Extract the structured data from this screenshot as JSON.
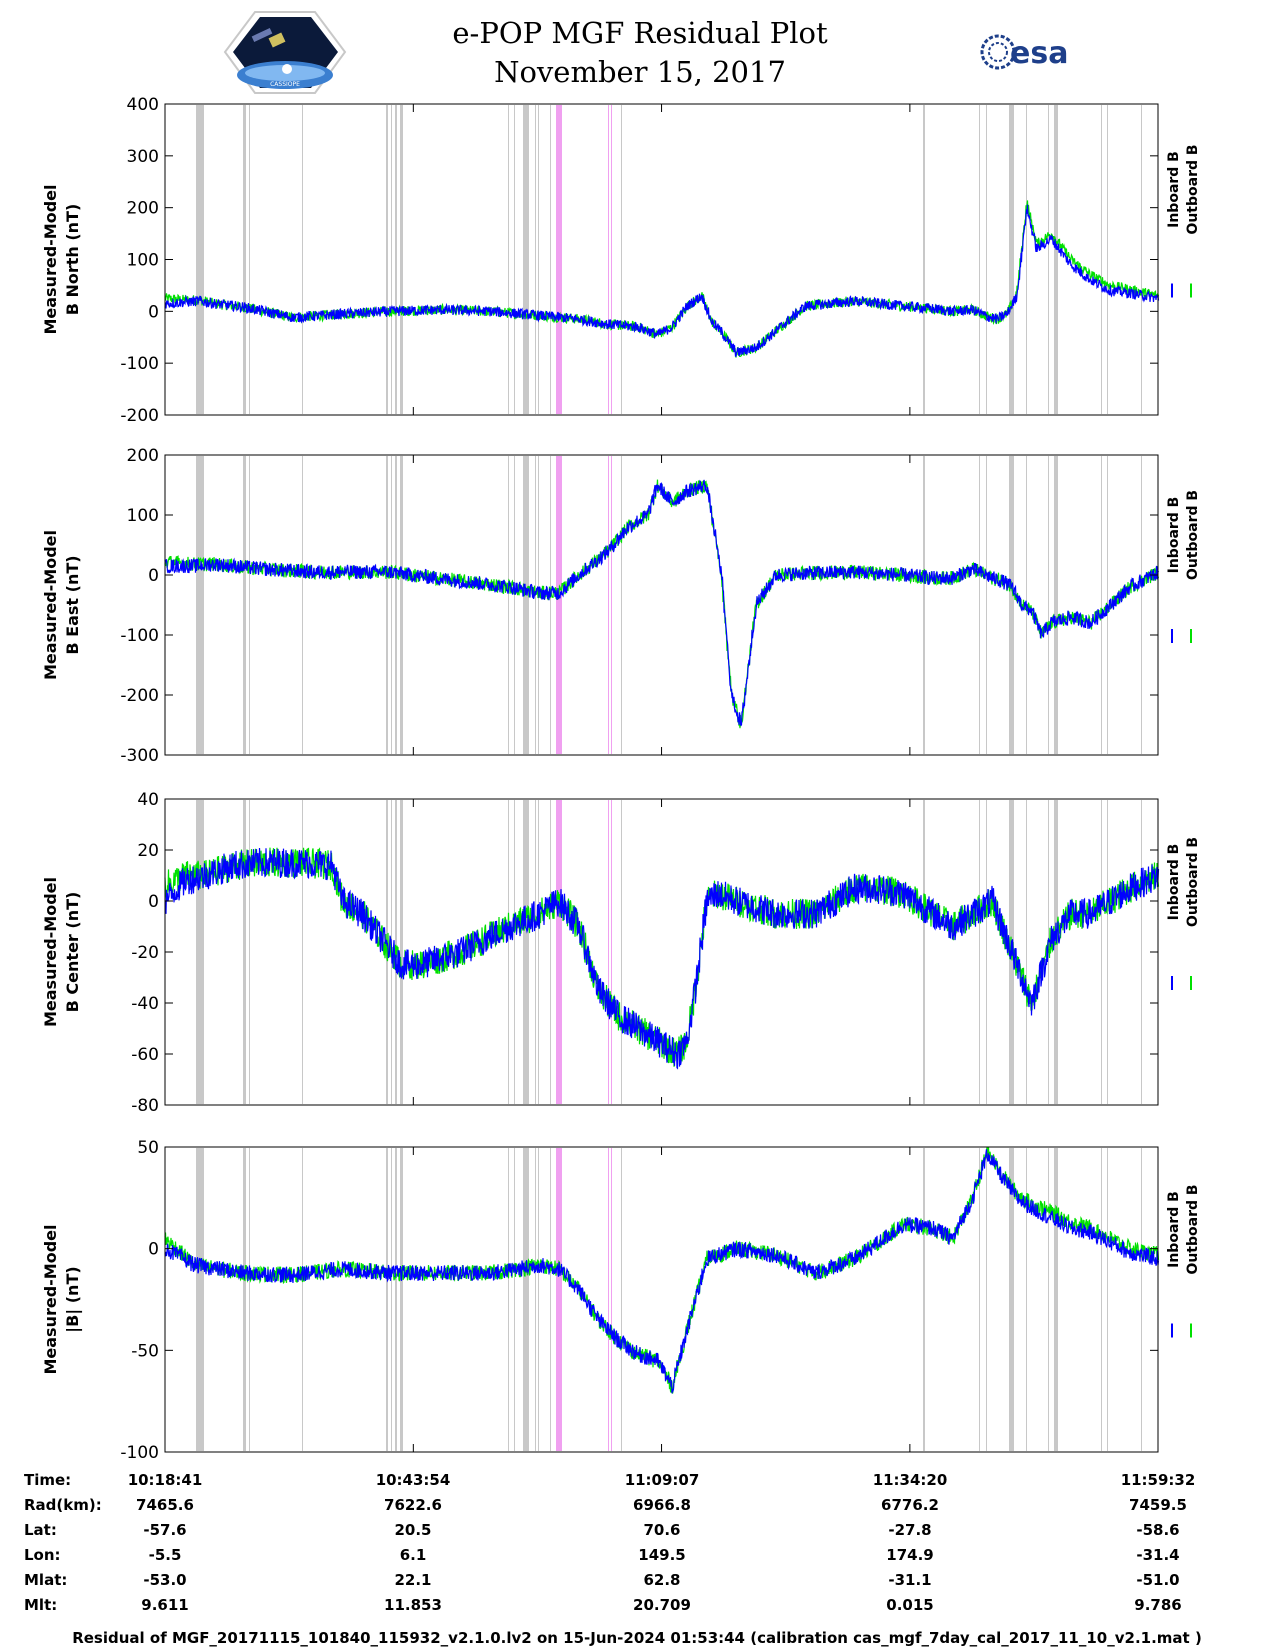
{
  "header": {
    "title_line1": "e-POP MGF Residual Plot",
    "title_line2": "November 15, 2017",
    "left_logo_text": "CASSIOPE",
    "right_logo_text": "esa"
  },
  "colors": {
    "inboard": "#0000ff",
    "outboard": "#00e000",
    "gap_gray": "#c8c8c8",
    "gap_pink": "#f0a0f0"
  },
  "time_table": {
    "row_labels": [
      "Time:",
      "Rad(km):",
      "Lat:",
      "Lon:",
      "Mlat:",
      "Mlt:"
    ],
    "columns": [
      [
        "10:18:41",
        "7465.6",
        "-57.6",
        "-5.5",
        "-53.0",
        "9.611"
      ],
      [
        "10:43:54",
        "7622.6",
        "20.5",
        "6.1",
        "22.1",
        "11.853"
      ],
      [
        "11:09:07",
        "6966.8",
        "70.6",
        "149.5",
        "62.8",
        "20.709"
      ],
      [
        "11:34:20",
        "6776.2",
        "-27.8",
        "174.9",
        "-31.1",
        "0.015"
      ],
      [
        "11:59:32",
        "7459.5",
        "-58.6",
        "-31.4",
        "-51.0",
        "9.786"
      ]
    ]
  },
  "footer": "Residual of MGF_20171115_101840_115932_v2.1.0.lv2 on 15-Jun-2024 01:53:44 (calibration cas_mgf_7day_cal_2017_11_10_v2.1.mat )",
  "chart_data": [
    {
      "type": "line",
      "ylabel": "Measured-Model B North (nT)",
      "ylabel_lines": [
        "Measured-Model",
        "B North (nT)"
      ],
      "ylim": [
        -200,
        400
      ],
      "yticks": [
        -200,
        -100,
        0,
        100,
        200,
        300,
        400
      ],
      "xlim_minutes": [
        0,
        100.85
      ],
      "xtick_minutes": [
        0,
        25.22,
        50.43,
        75.65,
        100.85
      ],
      "legend": [
        "Inboard B",
        "Outboard B"
      ],
      "series": [
        {
          "name": "Inboard B",
          "color": "#0000ff",
          "x": [
            0,
            2,
            3.5,
            5,
            8,
            13,
            18,
            23,
            28,
            33,
            38,
            42,
            45,
            48,
            50,
            51.5,
            53,
            54.5,
            55.5,
            56.5,
            58,
            60,
            65,
            70,
            75,
            78,
            80,
            82,
            83.5,
            84.5,
            85.5,
            86.5,
            87.5,
            88.5,
            90,
            92,
            94,
            96,
            98,
            100.85
          ],
          "y": [
            15,
            18,
            20,
            15,
            8,
            -12,
            -5,
            0,
            3,
            0,
            -8,
            -15,
            -25,
            -30,
            -45,
            -30,
            10,
            30,
            -20,
            -40,
            -80,
            -70,
            10,
            20,
            10,
            5,
            0,
            3,
            -10,
            -15,
            -5,
            30,
            200,
            120,
            140,
            90,
            60,
            40,
            35,
            25
          ],
          "noise": 10
        },
        {
          "name": "Outboard B",
          "color": "#00e000",
          "x": [
            0,
            2,
            3.5,
            5,
            8,
            13,
            18,
            23,
            28,
            33,
            38,
            42,
            45,
            48,
            50,
            51.5,
            53,
            54.5,
            55.5,
            56.5,
            58,
            60,
            65,
            70,
            75,
            78,
            80,
            82,
            83.5,
            84.5,
            85.5,
            86.5,
            87.5,
            88.5,
            90,
            92,
            94,
            96,
            98,
            100.85
          ],
          "y": [
            25,
            22,
            22,
            15,
            8,
            -12,
            -5,
            0,
            3,
            0,
            -8,
            -15,
            -25,
            -30,
            -45,
            -30,
            10,
            30,
            -20,
            -40,
            -80,
            -70,
            10,
            20,
            10,
            5,
            0,
            3,
            -10,
            -15,
            -5,
            35,
            210,
            130,
            150,
            100,
            70,
            50,
            42,
            30
          ],
          "noise": 10
        }
      ]
    },
    {
      "type": "line",
      "ylabel": "Measured-Model B East (nT)",
      "ylabel_lines": [
        "Measured-Model",
        "B East (nT)"
      ],
      "ylim": [
        -300,
        200
      ],
      "yticks": [
        -300,
        -200,
        -100,
        0,
        100,
        200
      ],
      "xlim_minutes": [
        0,
        100.85
      ],
      "xtick_minutes": [
        0,
        25.22,
        50.43,
        75.65,
        100.85
      ],
      "legend": [
        "Inboard B",
        "Outboard B"
      ],
      "series": [
        {
          "name": "Inboard B",
          "color": "#0000ff",
          "x": [
            0,
            3,
            5,
            10,
            15,
            20,
            23,
            25,
            30,
            35,
            38,
            40,
            42,
            45,
            47,
            49,
            50,
            51.5,
            53,
            55,
            56.5,
            57.5,
            58.5,
            60,
            62,
            65,
            70,
            75,
            78,
            80,
            82,
            84,
            85,
            86,
            87,
            88,
            89,
            90,
            92,
            94,
            96,
            98,
            100.85
          ],
          "y": [
            15,
            15,
            18,
            10,
            5,
            5,
            5,
            0,
            -10,
            -20,
            -30,
            -30,
            0,
            40,
            80,
            100,
            150,
            120,
            140,
            150,
            0,
            -200,
            -250,
            -50,
            0,
            3,
            5,
            0,
            -5,
            -5,
            10,
            -5,
            -10,
            -20,
            -50,
            -60,
            -100,
            -80,
            -70,
            -80,
            -50,
            -20,
            5
          ],
          "noise": 12
        },
        {
          "name": "Outboard B",
          "color": "#00e000",
          "x": [
            0,
            3,
            5,
            10,
            15,
            20,
            23,
            25,
            30,
            35,
            38,
            40,
            42,
            45,
            47,
            49,
            50,
            51.5,
            53,
            55,
            56.5,
            57.5,
            58.5,
            60,
            62,
            65,
            70,
            75,
            78,
            80,
            82,
            84,
            85,
            86,
            87,
            88,
            89,
            90,
            92,
            94,
            96,
            98,
            100.85
          ],
          "y": [
            22,
            18,
            18,
            10,
            5,
            5,
            5,
            0,
            -10,
            -20,
            -30,
            -30,
            0,
            40,
            80,
            100,
            150,
            120,
            140,
            150,
            0,
            -200,
            -250,
            -50,
            0,
            3,
            5,
            0,
            -5,
            -5,
            10,
            -5,
            -10,
            -20,
            -50,
            -60,
            -100,
            -80,
            -70,
            -80,
            -50,
            -20,
            5
          ],
          "noise": 12
        }
      ]
    },
    {
      "type": "line",
      "ylabel": "Measured-Model B Center (nT)",
      "ylabel_lines": [
        "Measured-Model",
        "B Center (nT)"
      ],
      "ylim": [
        -80,
        40
      ],
      "yticks": [
        -80,
        -60,
        -40,
        -20,
        0,
        20,
        40
      ],
      "xlim_minutes": [
        0,
        100.85
      ],
      "xtick_minutes": [
        0,
        25.22,
        50.43,
        75.65,
        100.85
      ],
      "legend": [
        "Inboard B",
        "Outboard B"
      ],
      "series": [
        {
          "name": "Inboard B",
          "color": "#0000ff",
          "x": [
            0,
            2,
            4,
            7,
            10,
            14,
            17,
            18,
            20,
            22,
            24,
            26,
            30,
            35,
            38,
            40,
            42,
            44,
            46,
            48,
            50,
            52,
            53,
            54,
            55,
            56,
            58,
            62,
            66,
            70,
            72,
            75,
            78,
            80,
            82,
            84,
            85,
            86,
            87,
            88,
            90,
            92,
            94,
            96,
            98,
            100.85
          ],
          "y": [
            0,
            8,
            10,
            14,
            15,
            15,
            14,
            0,
            -5,
            -15,
            -25,
            -25,
            -20,
            -10,
            -5,
            0,
            -10,
            -35,
            -45,
            -50,
            -55,
            -60,
            -55,
            -30,
            0,
            3,
            0,
            -5,
            -5,
            5,
            5,
            3,
            -5,
            -10,
            -5,
            0,
            -10,
            -20,
            -30,
            -40,
            -15,
            -5,
            -5,
            0,
            5,
            10
          ],
          "noise": 6
        },
        {
          "name": "Outboard B",
          "color": "#00e000",
          "x": [
            0,
            2,
            4,
            7,
            10,
            14,
            17,
            18,
            20,
            22,
            24,
            26,
            30,
            35,
            38,
            40,
            42,
            44,
            46,
            48,
            50,
            52,
            53,
            54,
            55,
            56,
            58,
            62,
            66,
            70,
            72,
            75,
            78,
            80,
            82,
            84,
            85,
            86,
            87,
            88,
            90,
            92,
            94,
            96,
            98,
            100.85
          ],
          "y": [
            6,
            10,
            10,
            14,
            15,
            15,
            14,
            0,
            -5,
            -15,
            -25,
            -25,
            -20,
            -10,
            -5,
            0,
            -10,
            -35,
            -45,
            -50,
            -55,
            -60,
            -55,
            -30,
            0,
            3,
            0,
            -5,
            -5,
            5,
            5,
            3,
            -5,
            -10,
            -5,
            0,
            -10,
            -20,
            -30,
            -40,
            -15,
            -5,
            -5,
            0,
            5,
            10
          ],
          "noise": 6
        }
      ]
    },
    {
      "type": "line",
      "ylabel": "Measured-Model |B| (nT)",
      "ylabel_lines": [
        "Measured-Model",
        "|B| (nT)"
      ],
      "ylim": [
        -100,
        50
      ],
      "yticks": [
        -100,
        -50,
        0,
        50
      ],
      "xlim_minutes": [
        0,
        100.85
      ],
      "xtick_minutes": [
        0,
        25.22,
        50.43,
        75.65,
        100.85
      ],
      "legend": [
        "Inboard B",
        "Outboard B"
      ],
      "series": [
        {
          "name": "Inboard B",
          "color": "#0000ff",
          "x": [
            0,
            3,
            8,
            13,
            18,
            23,
            28,
            33,
            36,
            38,
            40,
            42,
            44,
            46,
            48,
            50,
            51.5,
            53,
            55,
            58,
            62,
            66,
            70,
            73,
            75,
            78,
            80,
            82,
            83.5,
            85,
            86.5,
            88,
            90,
            92,
            94,
            96,
            98,
            100.85
          ],
          "y": [
            0,
            -8,
            -12,
            -13,
            -10,
            -12,
            -12,
            -12,
            -10,
            -8,
            -10,
            -20,
            -35,
            -45,
            -52,
            -55,
            -68,
            -40,
            -5,
            0,
            -3,
            -12,
            -5,
            5,
            12,
            10,
            5,
            25,
            47,
            35,
            25,
            20,
            15,
            10,
            8,
            3,
            -2,
            -5
          ],
          "noise": 4
        },
        {
          "name": "Outboard B",
          "color": "#00e000",
          "x": [
            0,
            3,
            8,
            13,
            18,
            23,
            28,
            33,
            36,
            38,
            40,
            42,
            44,
            46,
            48,
            50,
            51.5,
            53,
            55,
            58,
            62,
            66,
            70,
            73,
            75,
            78,
            80,
            82,
            83.5,
            85,
            86.5,
            88,
            90,
            92,
            94,
            96,
            98,
            100.85
          ],
          "y": [
            5,
            -8,
            -12,
            -13,
            -10,
            -12,
            -12,
            -12,
            -10,
            -8,
            -10,
            -20,
            -35,
            -45,
            -52,
            -55,
            -68,
            -40,
            -5,
            0,
            -3,
            -12,
            -5,
            5,
            12,
            10,
            5,
            25,
            48,
            36,
            27,
            22,
            18,
            13,
            10,
            5,
            0,
            -3
          ],
          "noise": 4
        }
      ]
    }
  ]
}
